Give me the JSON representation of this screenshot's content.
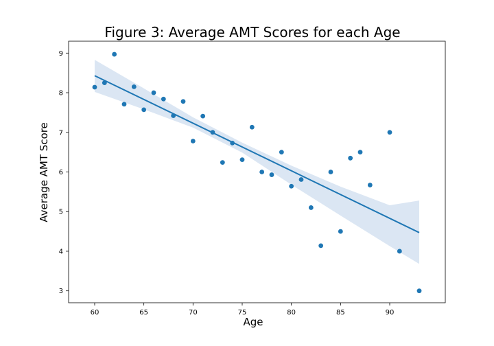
{
  "chart_data": {
    "type": "scatter",
    "title": "Figure 3: Average AMT Scores for each Age",
    "xlabel": "Age",
    "ylabel": "Average AMT Score",
    "xlim": [
      57.35,
      95.65
    ],
    "ylim": [
      2.7,
      9.3
    ],
    "xticks": [
      60,
      65,
      70,
      75,
      80,
      85,
      90
    ],
    "yticks": [
      3,
      4,
      5,
      6,
      7,
      8,
      9
    ],
    "grid": false,
    "colors": {
      "points": "#1f77b4",
      "line": "#1f77b4",
      "band": "#dbe6f3"
    },
    "series": [
      {
        "x": [
          60,
          61,
          62,
          63,
          64,
          65,
          66,
          67,
          68,
          69,
          70,
          71,
          72,
          73,
          74,
          75,
          76,
          77,
          78,
          79,
          80,
          81,
          82,
          83,
          84,
          85,
          86,
          87,
          88,
          90,
          91,
          93
        ],
        "y": [
          8.14,
          8.25,
          8.97,
          7.71,
          8.15,
          7.57,
          8.0,
          7.84,
          7.42,
          7.78,
          6.78,
          7.41,
          7.0,
          6.24,
          6.73,
          6.31,
          7.13,
          6.0,
          5.93,
          6.5,
          5.64,
          5.81,
          5.1,
          4.14,
          6.0,
          4.5,
          6.35,
          6.5,
          5.67,
          7.0,
          4.0,
          3.0
        ]
      }
    ],
    "regression": {
      "x": [
        60,
        93
      ],
      "y": [
        8.43,
        4.47
      ]
    },
    "confidence_band": {
      "x": [
        60,
        65,
        70,
        75,
        80,
        85,
        90,
        93
      ],
      "lower": [
        8.02,
        7.58,
        7.12,
        6.49,
        5.68,
        4.9,
        4.13,
        3.68
      ],
      "upper": [
        8.83,
        8.11,
        7.38,
        6.74,
        6.16,
        5.63,
        5.16,
        5.28
      ]
    }
  }
}
